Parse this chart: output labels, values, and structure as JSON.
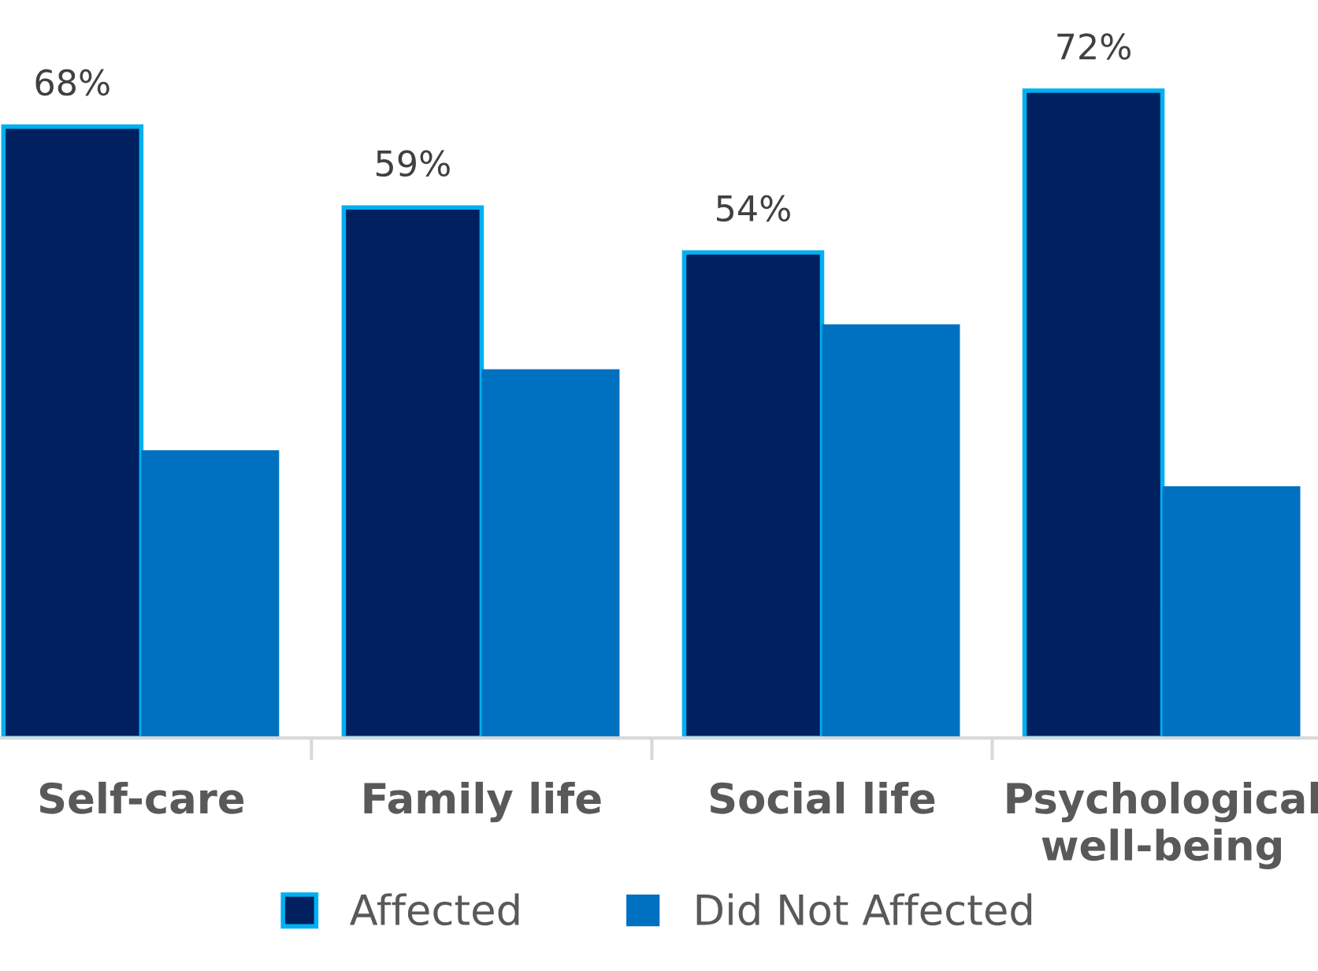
{
  "chart_data": {
    "type": "bar",
    "categories": [
      "Self-care",
      "Family life",
      "Social life",
      "Psychological\nwell-being"
    ],
    "series": [
      {
        "name": "Affected",
        "color": "#002060",
        "values": [
          68,
          59,
          54,
          72
        ],
        "value_labels": [
          "68%",
          "59%",
          "54%",
          "72%"
        ]
      },
      {
        "name": "Did Not Affected",
        "color": "#0070c0",
        "values": [
          32,
          41,
          46,
          28
        ]
      }
    ],
    "tick_labels": "x",
    "grid": false,
    "legend": "bottom"
  }
}
